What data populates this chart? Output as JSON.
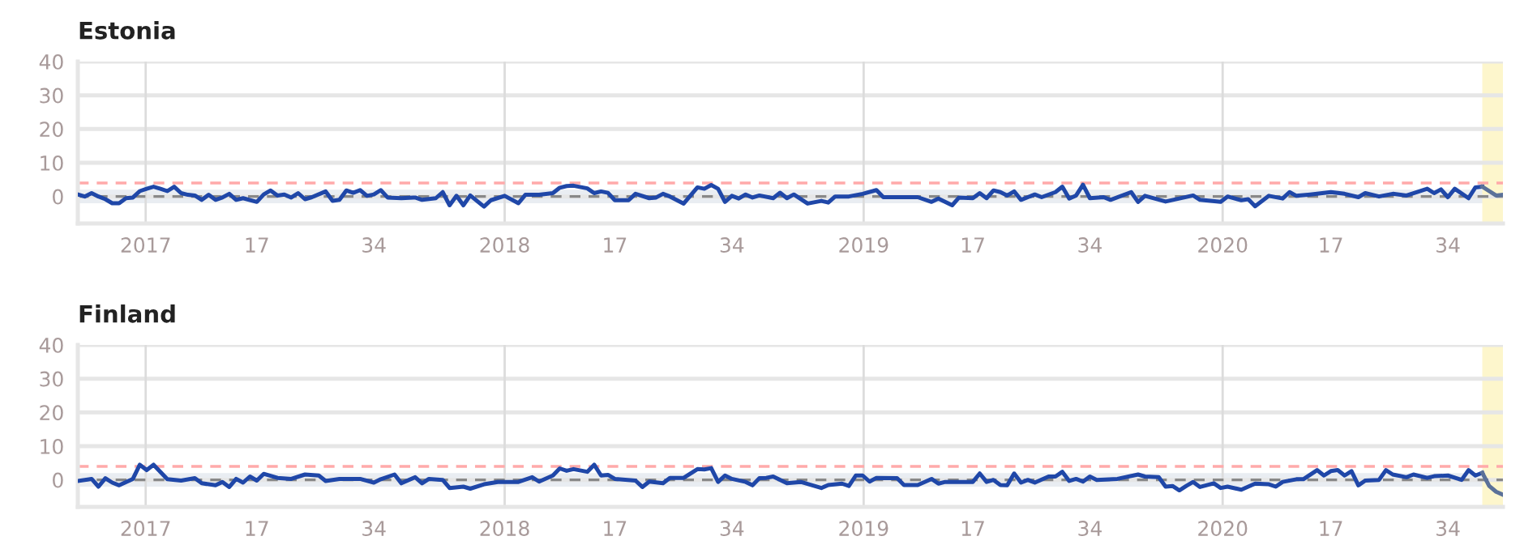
{
  "chart_data": [
    {
      "type": "line",
      "title": "Estonia",
      "series": [
        {
          "color": "#1f47a8",
          "x": [
            "2016-10-24",
            "2016-10-31",
            "2016-11-07",
            "2016-11-14",
            "2016-11-21",
            "2016-11-28",
            "2016-12-05",
            "2016-12-12",
            "2016-12-19",
            "2016-12-26",
            "2017-01-02",
            "2017-01-09",
            "2017-01-16",
            "2017-01-23",
            "2017-01-30",
            "2017-02-06",
            "2017-02-13",
            "2017-02-20",
            "2017-02-27",
            "2017-03-06",
            "2017-03-13",
            "2017-03-20",
            "2017-03-27",
            "2017-04-03",
            "2017-04-10",
            "2017-04-24",
            "2017-05-01",
            "2017-05-08",
            "2017-05-15",
            "2017-05-22",
            "2017-05-29",
            "2017-06-05",
            "2017-06-12",
            "2017-06-19",
            "2017-07-03",
            "2017-07-10",
            "2017-07-17",
            "2017-07-24",
            "2017-07-31",
            "2017-08-07",
            "2017-08-14",
            "2017-08-21",
            "2017-08-28",
            "2017-09-04",
            "2017-09-18",
            "2017-10-02",
            "2017-10-09",
            "2017-10-23",
            "2017-10-30",
            "2017-11-06",
            "2017-11-13",
            "2017-11-20",
            "2017-11-27",
            "2017-12-11",
            "2017-12-18",
            "2018-01-01",
            "2018-01-15",
            "2018-01-22",
            "2018-02-05",
            "2018-02-19",
            "2018-02-26",
            "2018-03-05",
            "2018-03-12",
            "2018-03-26",
            "2018-04-02",
            "2018-04-09",
            "2018-04-16",
            "2018-04-23",
            "2018-05-07",
            "2018-05-14",
            "2018-05-28",
            "2018-06-04",
            "2018-06-11",
            "2018-06-18",
            "2018-07-02",
            "2018-07-16",
            "2018-07-23",
            "2018-07-30",
            "2018-08-06",
            "2018-08-13",
            "2018-08-20",
            "2018-08-27",
            "2018-09-03",
            "2018-09-10",
            "2018-09-17",
            "2018-10-01",
            "2018-10-08",
            "2018-10-15",
            "2018-10-22",
            "2018-11-05",
            "2018-11-19",
            "2018-11-26",
            "2018-12-03",
            "2018-12-17",
            "2018-12-31",
            "2019-01-14",
            "2019-01-21",
            "2019-02-11",
            "2019-02-25",
            "2019-03-11",
            "2019-03-18",
            "2019-04-01",
            "2019-04-08",
            "2019-04-22",
            "2019-04-29",
            "2019-05-06",
            "2019-05-13",
            "2019-05-20",
            "2019-05-27",
            "2019-06-03",
            "2019-06-10",
            "2019-06-24",
            "2019-07-01",
            "2019-07-15",
            "2019-07-22",
            "2019-07-29",
            "2019-08-05",
            "2019-08-12",
            "2019-08-19",
            "2019-09-02",
            "2019-09-09",
            "2019-09-30",
            "2019-10-07",
            "2019-10-14",
            "2019-11-04",
            "2019-11-18",
            "2019-12-02",
            "2019-12-09",
            "2019-12-30",
            "2020-01-06",
            "2020-01-20",
            "2020-01-27",
            "2020-02-03",
            "2020-02-17",
            "2020-03-02",
            "2020-03-09",
            "2020-03-16",
            "2020-03-30",
            "2020-04-20",
            "2020-05-04",
            "2020-05-18",
            "2020-05-25",
            "2020-06-08",
            "2020-06-22",
            "2020-07-06",
            "2020-07-27",
            "2020-08-03",
            "2020-08-10",
            "2020-08-17",
            "2020-08-24",
            "2020-09-07",
            "2020-09-14",
            "2020-09-21"
          ],
          "values": [
            0.6,
            0,
            1,
            0,
            -0.8,
            -2,
            -2,
            -0.5,
            -0.3,
            1.6,
            2.3,
            2.9,
            2.3,
            1.6,
            2.9,
            1,
            0.5,
            0.3,
            -1,
            0.5,
            -1,
            -0.3,
            0.8,
            -1,
            -0.5,
            -1.6,
            0.6,
            1.8,
            0.3,
            0.6,
            -0.3,
            1,
            -0.8,
            -0.2,
            1.5,
            -1.3,
            -1,
            1.8,
            1.1,
            1.9,
            0.2,
            0.6,
            1.9,
            -0.3,
            -0.5,
            -0.3,
            -1,
            -0.5,
            1.3,
            -2.6,
            0.2,
            -2.6,
            0.3,
            -3,
            -1.1,
            0.2,
            -2,
            0.5,
            0.5,
            1,
            2.6,
            3.1,
            3.2,
            2.4,
            1,
            1.5,
            1.1,
            -1.1,
            -1.1,
            0.8,
            -0.5,
            -0.3,
            0.8,
            0,
            -2.1,
            2.7,
            2.3,
            3.4,
            2.3,
            -1.6,
            0.2,
            -0.6,
            0.6,
            -0.3,
            0.3,
            -0.5,
            1.1,
            -0.5,
            0.6,
            -2.1,
            -1.3,
            -1.8,
            0,
            0,
            0.8,
            1.9,
            -0.2,
            -0.2,
            -0.2,
            -1.6,
            -0.6,
            -2.6,
            -0.3,
            -0.5,
            1,
            -0.5,
            1.8,
            1.3,
            0.3,
            1.5,
            -1,
            0.6,
            -0.2,
            1.3,
            2.9,
            -0.6,
            0.3,
            3.5,
            -0.5,
            -0.2,
            -1,
            1.3,
            -1.6,
            0.2,
            -1.5,
            -0.6,
            0.3,
            -1,
            -1.6,
            0,
            -1.1,
            -0.8,
            -2.9,
            0.2,
            -0.6,
            1.3,
            0.2,
            0.6,
            1.3,
            0.8,
            -0.2,
            1,
            0,
            0.8,
            0.3,
            2.3,
            1,
            2.1,
            -0.2,
            2.3,
            -0.5,
            2.7,
            2.9
          ]
        },
        {
          "color": "#5b7199",
          "x": [
            "2020-09-21",
            "2020-10-05",
            "2020-10-12"
          ],
          "values": [
            2.9,
            0.3,
            0.5
          ]
        }
      ],
      "xlim": [
        "2016-10-24",
        "2020-10-12"
      ],
      "ylim": [
        -8,
        40
      ],
      "yticks": [
        0,
        10,
        20,
        30,
        40
      ],
      "xticks": [
        {
          "value": "2017-01-01",
          "label": "2017"
        },
        {
          "value": "2017-04-24",
          "label": "17"
        },
        {
          "value": "2017-08-21",
          "label": "34"
        },
        {
          "value": "2018-01-01",
          "label": "2018"
        },
        {
          "value": "2018-04-23",
          "label": "17"
        },
        {
          "value": "2018-08-20",
          "label": "34"
        },
        {
          "value": "2019-01-01",
          "label": "2019"
        },
        {
          "value": "2019-04-22",
          "label": "17"
        },
        {
          "value": "2019-08-19",
          "label": "34"
        },
        {
          "value": "2020-01-01",
          "label": "2020"
        },
        {
          "value": "2020-04-20",
          "label": "17"
        },
        {
          "value": "2020-08-17",
          "label": "34"
        }
      ],
      "grid": "y",
      "marker": "none",
      "line_style": "solid",
      "ref_lines": [
        {
          "axis": "x",
          "value": "2017-01-01",
          "color": "#dcdcdc",
          "line_style": "solid"
        },
        {
          "axis": "x",
          "value": "2018-01-01",
          "color": "#dcdcdc",
          "line_style": "solid"
        },
        {
          "axis": "x",
          "value": "2019-01-01",
          "color": "#dcdcdc",
          "line_style": "solid"
        },
        {
          "axis": "x",
          "value": "2020-01-01",
          "color": "#dcdcdc",
          "line_style": "solid"
        },
        {
          "axis": "y",
          "value": 0,
          "color": "#888888",
          "line_style": "dashed"
        },
        {
          "axis": "y",
          "value": 4,
          "color": "#ffaaaa",
          "line_style": "dashed"
        }
      ],
      "bands": [
        {
          "axis": "y",
          "from": -2,
          "to": 2,
          "color": "#e9edf2"
        },
        {
          "axis": "x",
          "from": "2020-09-21",
          "to": "2020-10-12",
          "color": "#fdf6cc"
        }
      ]
    },
    {
      "type": "line",
      "title": "Finland",
      "series": [
        {
          "color": "#1f47a8",
          "x": [
            "2016-10-24",
            "2016-11-07",
            "2016-11-14",
            "2016-11-21",
            "2016-11-28",
            "2016-12-05",
            "2016-12-19",
            "2016-12-26",
            "2017-01-02",
            "2017-01-09",
            "2017-01-23",
            "2017-02-06",
            "2017-02-20",
            "2017-02-27",
            "2017-03-13",
            "2017-03-20",
            "2017-03-27",
            "2017-04-03",
            "2017-04-10",
            "2017-04-17",
            "2017-04-24",
            "2017-05-01",
            "2017-05-15",
            "2017-05-29",
            "2017-06-12",
            "2017-06-26",
            "2017-07-03",
            "2017-07-17",
            "2017-08-07",
            "2017-08-21",
            "2017-08-28",
            "2017-09-11",
            "2017-09-18",
            "2017-10-02",
            "2017-10-09",
            "2017-10-16",
            "2017-10-30",
            "2017-11-06",
            "2017-11-20",
            "2017-11-27",
            "2017-12-11",
            "2017-12-25",
            "2018-01-15",
            "2018-01-29",
            "2018-02-05",
            "2018-02-19",
            "2018-02-26",
            "2018-03-05",
            "2018-03-12",
            "2018-03-26",
            "2018-04-02",
            "2018-04-09",
            "2018-04-16",
            "2018-04-23",
            "2018-05-14",
            "2018-05-21",
            "2018-05-28",
            "2018-06-11",
            "2018-06-18",
            "2018-07-02",
            "2018-07-16",
            "2018-07-23",
            "2018-07-30",
            "2018-08-06",
            "2018-08-13",
            "2018-08-20",
            "2018-09-03",
            "2018-09-10",
            "2018-09-17",
            "2018-09-24",
            "2018-10-01",
            "2018-10-15",
            "2018-10-29",
            "2018-11-19",
            "2018-11-26",
            "2018-12-10",
            "2018-12-17",
            "2018-12-24",
            "2018-12-31",
            "2019-01-07",
            "2019-01-14",
            "2019-02-04",
            "2019-02-11",
            "2019-02-25",
            "2019-03-11",
            "2019-03-18",
            "2019-03-25",
            "2019-04-08",
            "2019-04-22",
            "2019-04-29",
            "2019-05-06",
            "2019-05-13",
            "2019-05-20",
            "2019-05-27",
            "2019-06-03",
            "2019-06-10",
            "2019-06-17",
            "2019-06-24",
            "2019-07-08",
            "2019-07-15",
            "2019-07-22",
            "2019-07-29",
            "2019-08-05",
            "2019-08-12",
            "2019-08-19",
            "2019-08-26",
            "2019-09-16",
            "2019-10-07",
            "2019-10-14",
            "2019-10-28",
            "2019-11-04",
            "2019-11-11",
            "2019-11-18",
            "2019-11-25",
            "2019-12-02",
            "2019-12-09",
            "2019-12-23",
            "2019-12-30",
            "2020-01-06",
            "2020-01-20",
            "2020-02-03",
            "2020-02-17",
            "2020-02-24",
            "2020-03-02",
            "2020-03-16",
            "2020-03-23",
            "2020-04-06",
            "2020-04-13",
            "2020-04-20",
            "2020-04-27",
            "2020-05-04",
            "2020-05-11",
            "2020-05-18",
            "2020-05-25",
            "2020-06-08",
            "2020-06-15",
            "2020-06-22",
            "2020-07-06",
            "2020-07-13",
            "2020-07-27",
            "2020-08-03",
            "2020-08-17",
            "2020-08-31",
            "2020-09-07",
            "2020-09-14",
            "2020-09-21"
          ],
          "values": [
            -0.3,
            0.3,
            -2,
            0.5,
            -0.8,
            -1.6,
            0.3,
            4.5,
            2.9,
            4.5,
            0.2,
            -0.2,
            0.5,
            -1,
            -1.6,
            -0.6,
            -2.1,
            0.3,
            -0.8,
            1,
            -0.2,
            1.8,
            0.6,
            0.3,
            1.6,
            1.3,
            -0.3,
            0.3,
            0.3,
            -0.8,
            0.2,
            1.6,
            -1,
            0.8,
            -1,
            0.3,
            0,
            -2.4,
            -2,
            -2.6,
            -1.3,
            -0.6,
            -0.6,
            0.8,
            -0.5,
            1.3,
            3.4,
            2.7,
            3.2,
            2.4,
            4.5,
            1.3,
            1.5,
            0.3,
            -0.2,
            -2.1,
            -0.5,
            -1,
            0.6,
            0.6,
            3.2,
            3.1,
            3.5,
            -0.6,
            1.3,
            0.3,
            -0.6,
            -1.6,
            0.5,
            0.6,
            1,
            -1,
            -0.6,
            -2.4,
            -1.5,
            -1.1,
            -1.8,
            1.3,
            1.3,
            -0.5,
            0.6,
            0.5,
            -1.5,
            -1.5,
            0.3,
            -1.1,
            -0.6,
            -0.6,
            -0.6,
            1.9,
            -0.6,
            0,
            -1.5,
            -1.6,
            1.9,
            -0.8,
            0,
            -0.8,
            1,
            1,
            2.4,
            -0.3,
            0.3,
            -0.5,
            1,
            0,
            0.3,
            1.6,
            1,
            0.8,
            -2,
            -1.8,
            -3.1,
            -1.8,
            -0.6,
            -2.1,
            -1,
            -2.4,
            -2,
            -2.9,
            -1.1,
            -1.3,
            -2,
            -0.6,
            0.2,
            0.2,
            2.9,
            1.3,
            2.6,
            2.9,
            1.3,
            2.6,
            -1.6,
            -0.2,
            0,
            2.9,
            1.6,
            0.8,
            1.6,
            0.6,
            1.1,
            1.3,
            0,
            2.9,
            1.3,
            2.1
          ]
        },
        {
          "color": "#5b7199",
          "x": [
            "2020-09-21",
            "2020-09-28",
            "2020-10-05",
            "2020-10-12"
          ],
          "values": [
            2.1,
            -1.8,
            -3.5,
            -4.4
          ]
        }
      ],
      "xlim": [
        "2016-10-24",
        "2020-10-12"
      ],
      "ylim": [
        -8,
        40
      ],
      "yticks": [
        0,
        10,
        20,
        30,
        40
      ],
      "xticks": [
        {
          "value": "2017-01-01",
          "label": "2017"
        },
        {
          "value": "2017-04-24",
          "label": "17"
        },
        {
          "value": "2017-08-21",
          "label": "34"
        },
        {
          "value": "2018-01-01",
          "label": "2018"
        },
        {
          "value": "2018-04-23",
          "label": "17"
        },
        {
          "value": "2018-08-20",
          "label": "34"
        },
        {
          "value": "2019-01-01",
          "label": "2019"
        },
        {
          "value": "2019-04-22",
          "label": "17"
        },
        {
          "value": "2019-08-19",
          "label": "34"
        },
        {
          "value": "2020-01-01",
          "label": "2020"
        },
        {
          "value": "2020-04-20",
          "label": "17"
        },
        {
          "value": "2020-08-17",
          "label": "34"
        }
      ],
      "grid": "y",
      "marker": "none",
      "line_style": "solid",
      "ref_lines": [
        {
          "axis": "x",
          "value": "2017-01-01",
          "color": "#dcdcdc",
          "line_style": "solid"
        },
        {
          "axis": "x",
          "value": "2018-01-01",
          "color": "#dcdcdc",
          "line_style": "solid"
        },
        {
          "axis": "x",
          "value": "2019-01-01",
          "color": "#dcdcdc",
          "line_style": "solid"
        },
        {
          "axis": "x",
          "value": "2020-01-01",
          "color": "#dcdcdc",
          "line_style": "solid"
        },
        {
          "axis": "y",
          "value": 0,
          "color": "#888888",
          "line_style": "dashed"
        },
        {
          "axis": "y",
          "value": 4,
          "color": "#ffaaaa",
          "line_style": "dashed"
        }
      ],
      "bands": [
        {
          "axis": "y",
          "from": -2,
          "to": 2,
          "color": "#e9edf2"
        },
        {
          "axis": "x",
          "from": "2020-09-21",
          "to": "2020-10-12",
          "color": "#fdf6cc"
        }
      ]
    }
  ]
}
